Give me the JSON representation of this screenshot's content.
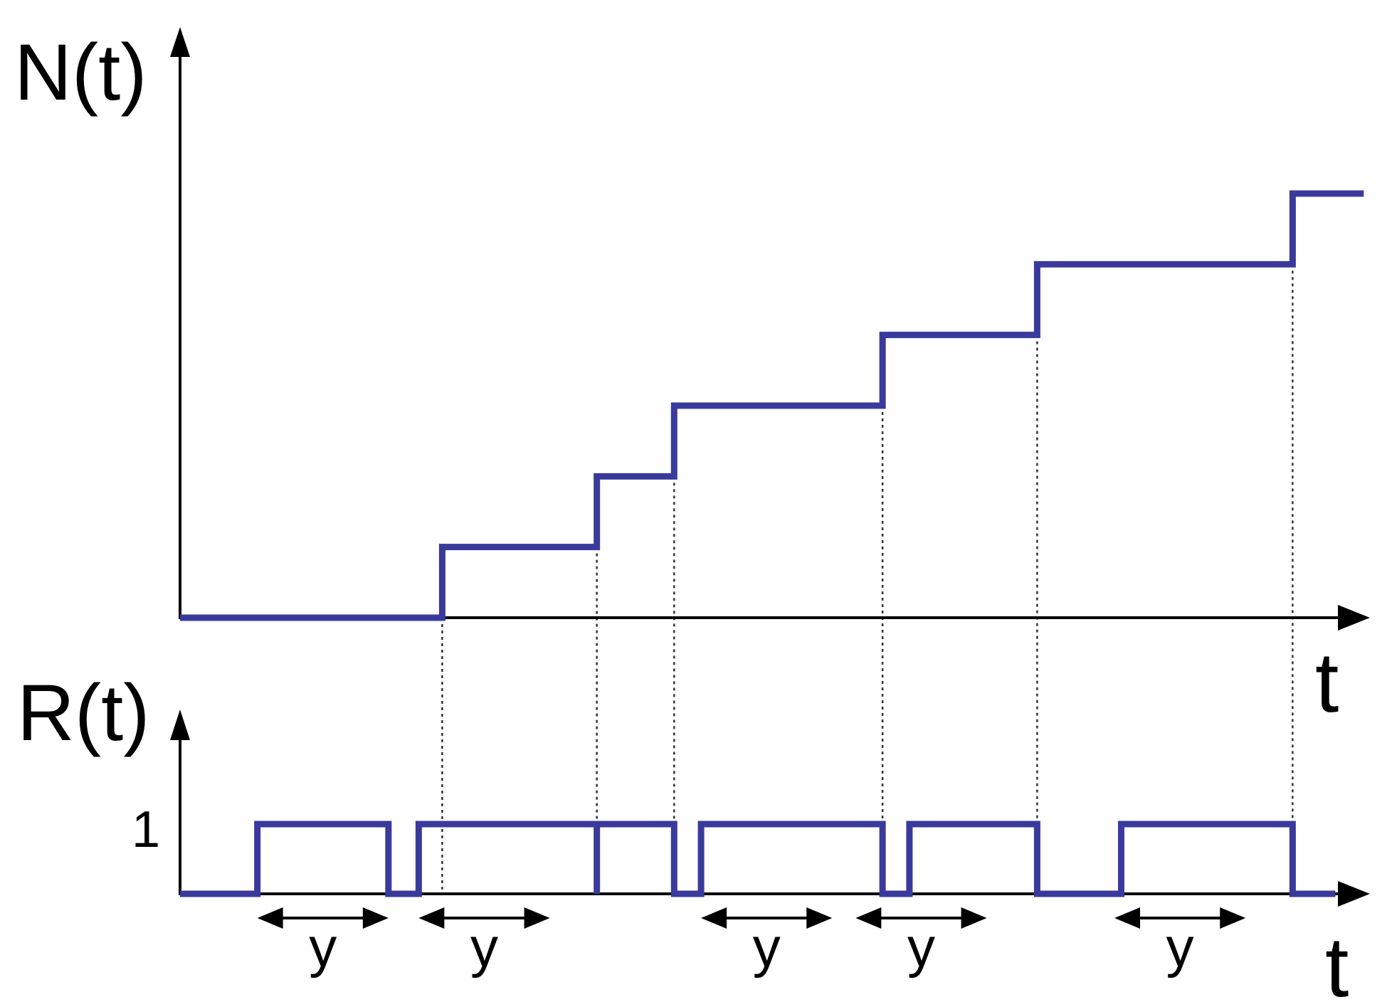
{
  "labels": {
    "top_ylabel": "N(t)",
    "bottom_ylabel": "R(t)",
    "top_xlabel": "t",
    "bottom_xlabel": "t",
    "level_one": "1",
    "duration": "y"
  },
  "colors": {
    "signal": "#3a3a9c",
    "axes": "#000000",
    "guides": "#333333"
  },
  "top_chart": {
    "type": "step",
    "jump_times": [
      3.9,
      6.2,
      7.35,
      10.45,
      12.75,
      16.55
    ],
    "levels": [
      0,
      1,
      2,
      3,
      4,
      5,
      6
    ],
    "x_range": [
      0,
      17.7
    ],
    "y_range": [
      0,
      6
    ]
  },
  "bottom_chart": {
    "type": "pulses",
    "pulses": [
      {
        "start": 1.15,
        "end": 3.1
      },
      {
        "start": 3.55,
        "end": 6.2
      },
      {
        "start": 6.2,
        "end": 7.35
      },
      {
        "start": 7.75,
        "end": 10.45
      },
      {
        "start": 10.85,
        "end": 12.75
      },
      {
        "start": 14.0,
        "end": 16.55
      }
    ],
    "durations": [
      {
        "start": 1.15,
        "end": 3.1
      },
      {
        "start": 3.55,
        "end": 5.5
      },
      {
        "start": 7.75,
        "end": 9.7
      },
      {
        "start": 10.05,
        "end": 12.0
      },
      {
        "start": 13.9,
        "end": 15.85
      }
    ],
    "x_range": [
      0,
      17.7
    ]
  }
}
